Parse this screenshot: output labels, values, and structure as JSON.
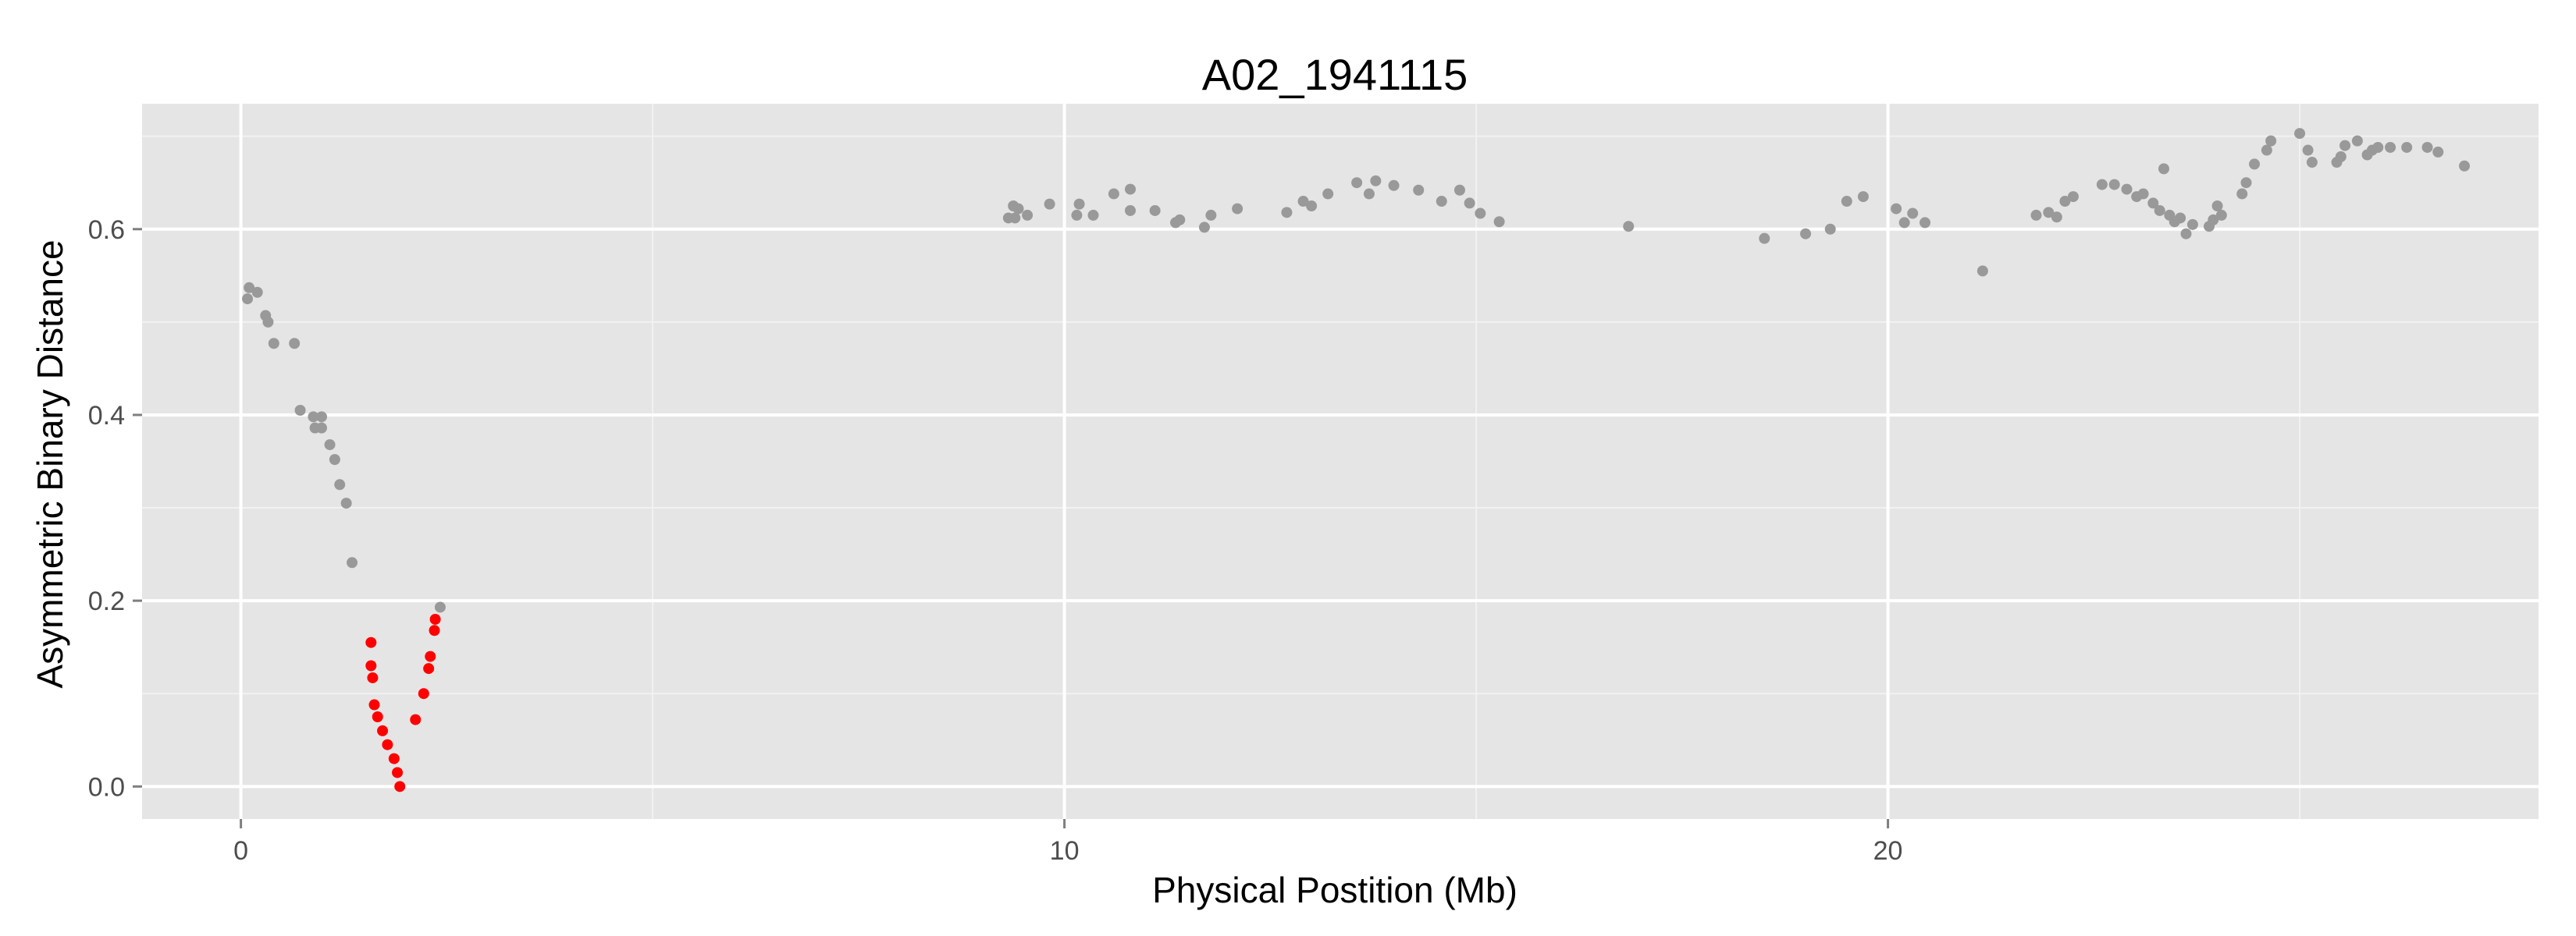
{
  "chart_data": {
    "type": "scatter",
    "title": "A02_1941115",
    "xlabel": "Physical Postition (Mb)",
    "ylabel": "Asymmetric Binary Distance",
    "xlim": [
      -1.2,
      27.9
    ],
    "ylim": [
      -0.035,
      0.735
    ],
    "x_ticks": [
      0,
      10,
      20
    ],
    "x_tick_labels": [
      "0",
      "10",
      "20"
    ],
    "y_ticks": [
      0.0,
      0.2,
      0.4,
      0.6
    ],
    "y_tick_labels": [
      "0.0",
      "0.2",
      "0.4",
      "0.6"
    ],
    "grid": true,
    "panel_color": "#e5e5e5",
    "series": [
      {
        "color": "#999999",
        "points": [
          [
            0.08,
            0.525
          ],
          [
            0.1,
            0.537
          ],
          [
            0.2,
            0.532
          ],
          [
            0.3,
            0.507
          ],
          [
            0.33,
            0.5
          ],
          [
            0.4,
            0.477
          ],
          [
            0.65,
            0.477
          ],
          [
            0.72,
            0.405
          ],
          [
            0.88,
            0.398
          ],
          [
            0.9,
            0.386
          ],
          [
            0.98,
            0.398
          ],
          [
            0.98,
            0.386
          ],
          [
            1.08,
            0.368
          ],
          [
            1.14,
            0.352
          ],
          [
            1.2,
            0.325
          ],
          [
            1.28,
            0.305
          ],
          [
            1.35,
            0.241
          ],
          [
            2.42,
            0.193
          ],
          [
            9.32,
            0.612
          ],
          [
            9.38,
            0.625
          ],
          [
            9.4,
            0.612
          ],
          [
            9.44,
            0.622
          ],
          [
            9.55,
            0.615
          ],
          [
            9.82,
            0.627
          ],
          [
            10.15,
            0.615
          ],
          [
            10.18,
            0.627
          ],
          [
            10.35,
            0.615
          ],
          [
            10.6,
            0.638
          ],
          [
            10.8,
            0.643
          ],
          [
            10.8,
            0.62
          ],
          [
            11.1,
            0.62
          ],
          [
            11.35,
            0.607
          ],
          [
            11.4,
            0.61
          ],
          [
            11.7,
            0.602
          ],
          [
            11.78,
            0.615
          ],
          [
            12.1,
            0.622
          ],
          [
            12.7,
            0.618
          ],
          [
            12.9,
            0.63
          ],
          [
            13.0,
            0.625
          ],
          [
            13.2,
            0.638
          ],
          [
            13.55,
            0.65
          ],
          [
            13.7,
            0.638
          ],
          [
            13.78,
            0.652
          ],
          [
            14.0,
            0.647
          ],
          [
            14.3,
            0.642
          ],
          [
            14.58,
            0.63
          ],
          [
            14.8,
            0.642
          ],
          [
            14.92,
            0.628
          ],
          [
            15.05,
            0.617
          ],
          [
            15.28,
            0.608
          ],
          [
            16.85,
            0.603
          ],
          [
            18.5,
            0.59
          ],
          [
            19.0,
            0.595
          ],
          [
            19.3,
            0.6
          ],
          [
            19.5,
            0.63
          ],
          [
            19.7,
            0.635
          ],
          [
            20.1,
            0.622
          ],
          [
            20.2,
            0.607
          ],
          [
            20.3,
            0.617
          ],
          [
            20.45,
            0.607
          ],
          [
            21.15,
            0.555
          ],
          [
            21.8,
            0.615
          ],
          [
            21.95,
            0.618
          ],
          [
            22.05,
            0.613
          ],
          [
            22.15,
            0.63
          ],
          [
            22.25,
            0.635
          ],
          [
            22.6,
            0.648
          ],
          [
            22.75,
            0.648
          ],
          [
            22.9,
            0.643
          ],
          [
            23.02,
            0.635
          ],
          [
            23.1,
            0.638
          ],
          [
            23.22,
            0.628
          ],
          [
            23.3,
            0.62
          ],
          [
            23.35,
            0.665
          ],
          [
            23.42,
            0.615
          ],
          [
            23.48,
            0.608
          ],
          [
            23.55,
            0.612
          ],
          [
            23.62,
            0.595
          ],
          [
            23.7,
            0.605
          ],
          [
            23.9,
            0.603
          ],
          [
            23.95,
            0.61
          ],
          [
            24.0,
            0.625
          ],
          [
            24.05,
            0.615
          ],
          [
            24.3,
            0.638
          ],
          [
            24.35,
            0.65
          ],
          [
            24.45,
            0.67
          ],
          [
            24.6,
            0.685
          ],
          [
            24.65,
            0.695
          ],
          [
            25.0,
            0.703
          ],
          [
            25.1,
            0.685
          ],
          [
            25.15,
            0.672
          ],
          [
            25.45,
            0.672
          ],
          [
            25.5,
            0.678
          ],
          [
            25.55,
            0.69
          ],
          [
            25.7,
            0.695
          ],
          [
            25.82,
            0.68
          ],
          [
            25.88,
            0.685
          ],
          [
            25.95,
            0.688
          ],
          [
            26.1,
            0.688
          ],
          [
            26.3,
            0.688
          ],
          [
            26.55,
            0.688
          ],
          [
            26.68,
            0.683
          ],
          [
            27.0,
            0.668
          ]
        ]
      },
      {
        "color": "#ff0000",
        "points": [
          [
            1.58,
            0.155
          ],
          [
            1.58,
            0.13
          ],
          [
            1.6,
            0.117
          ],
          [
            1.62,
            0.088
          ],
          [
            1.66,
            0.075
          ],
          [
            1.72,
            0.06
          ],
          [
            1.78,
            0.045
          ],
          [
            1.86,
            0.03
          ],
          [
            1.9,
            0.015
          ],
          [
            1.93,
            0.0
          ],
          [
            2.12,
            0.072
          ],
          [
            2.22,
            0.1
          ],
          [
            2.28,
            0.127
          ],
          [
            2.3,
            0.14
          ],
          [
            2.35,
            0.168
          ],
          [
            2.36,
            0.18
          ]
        ]
      }
    ]
  }
}
